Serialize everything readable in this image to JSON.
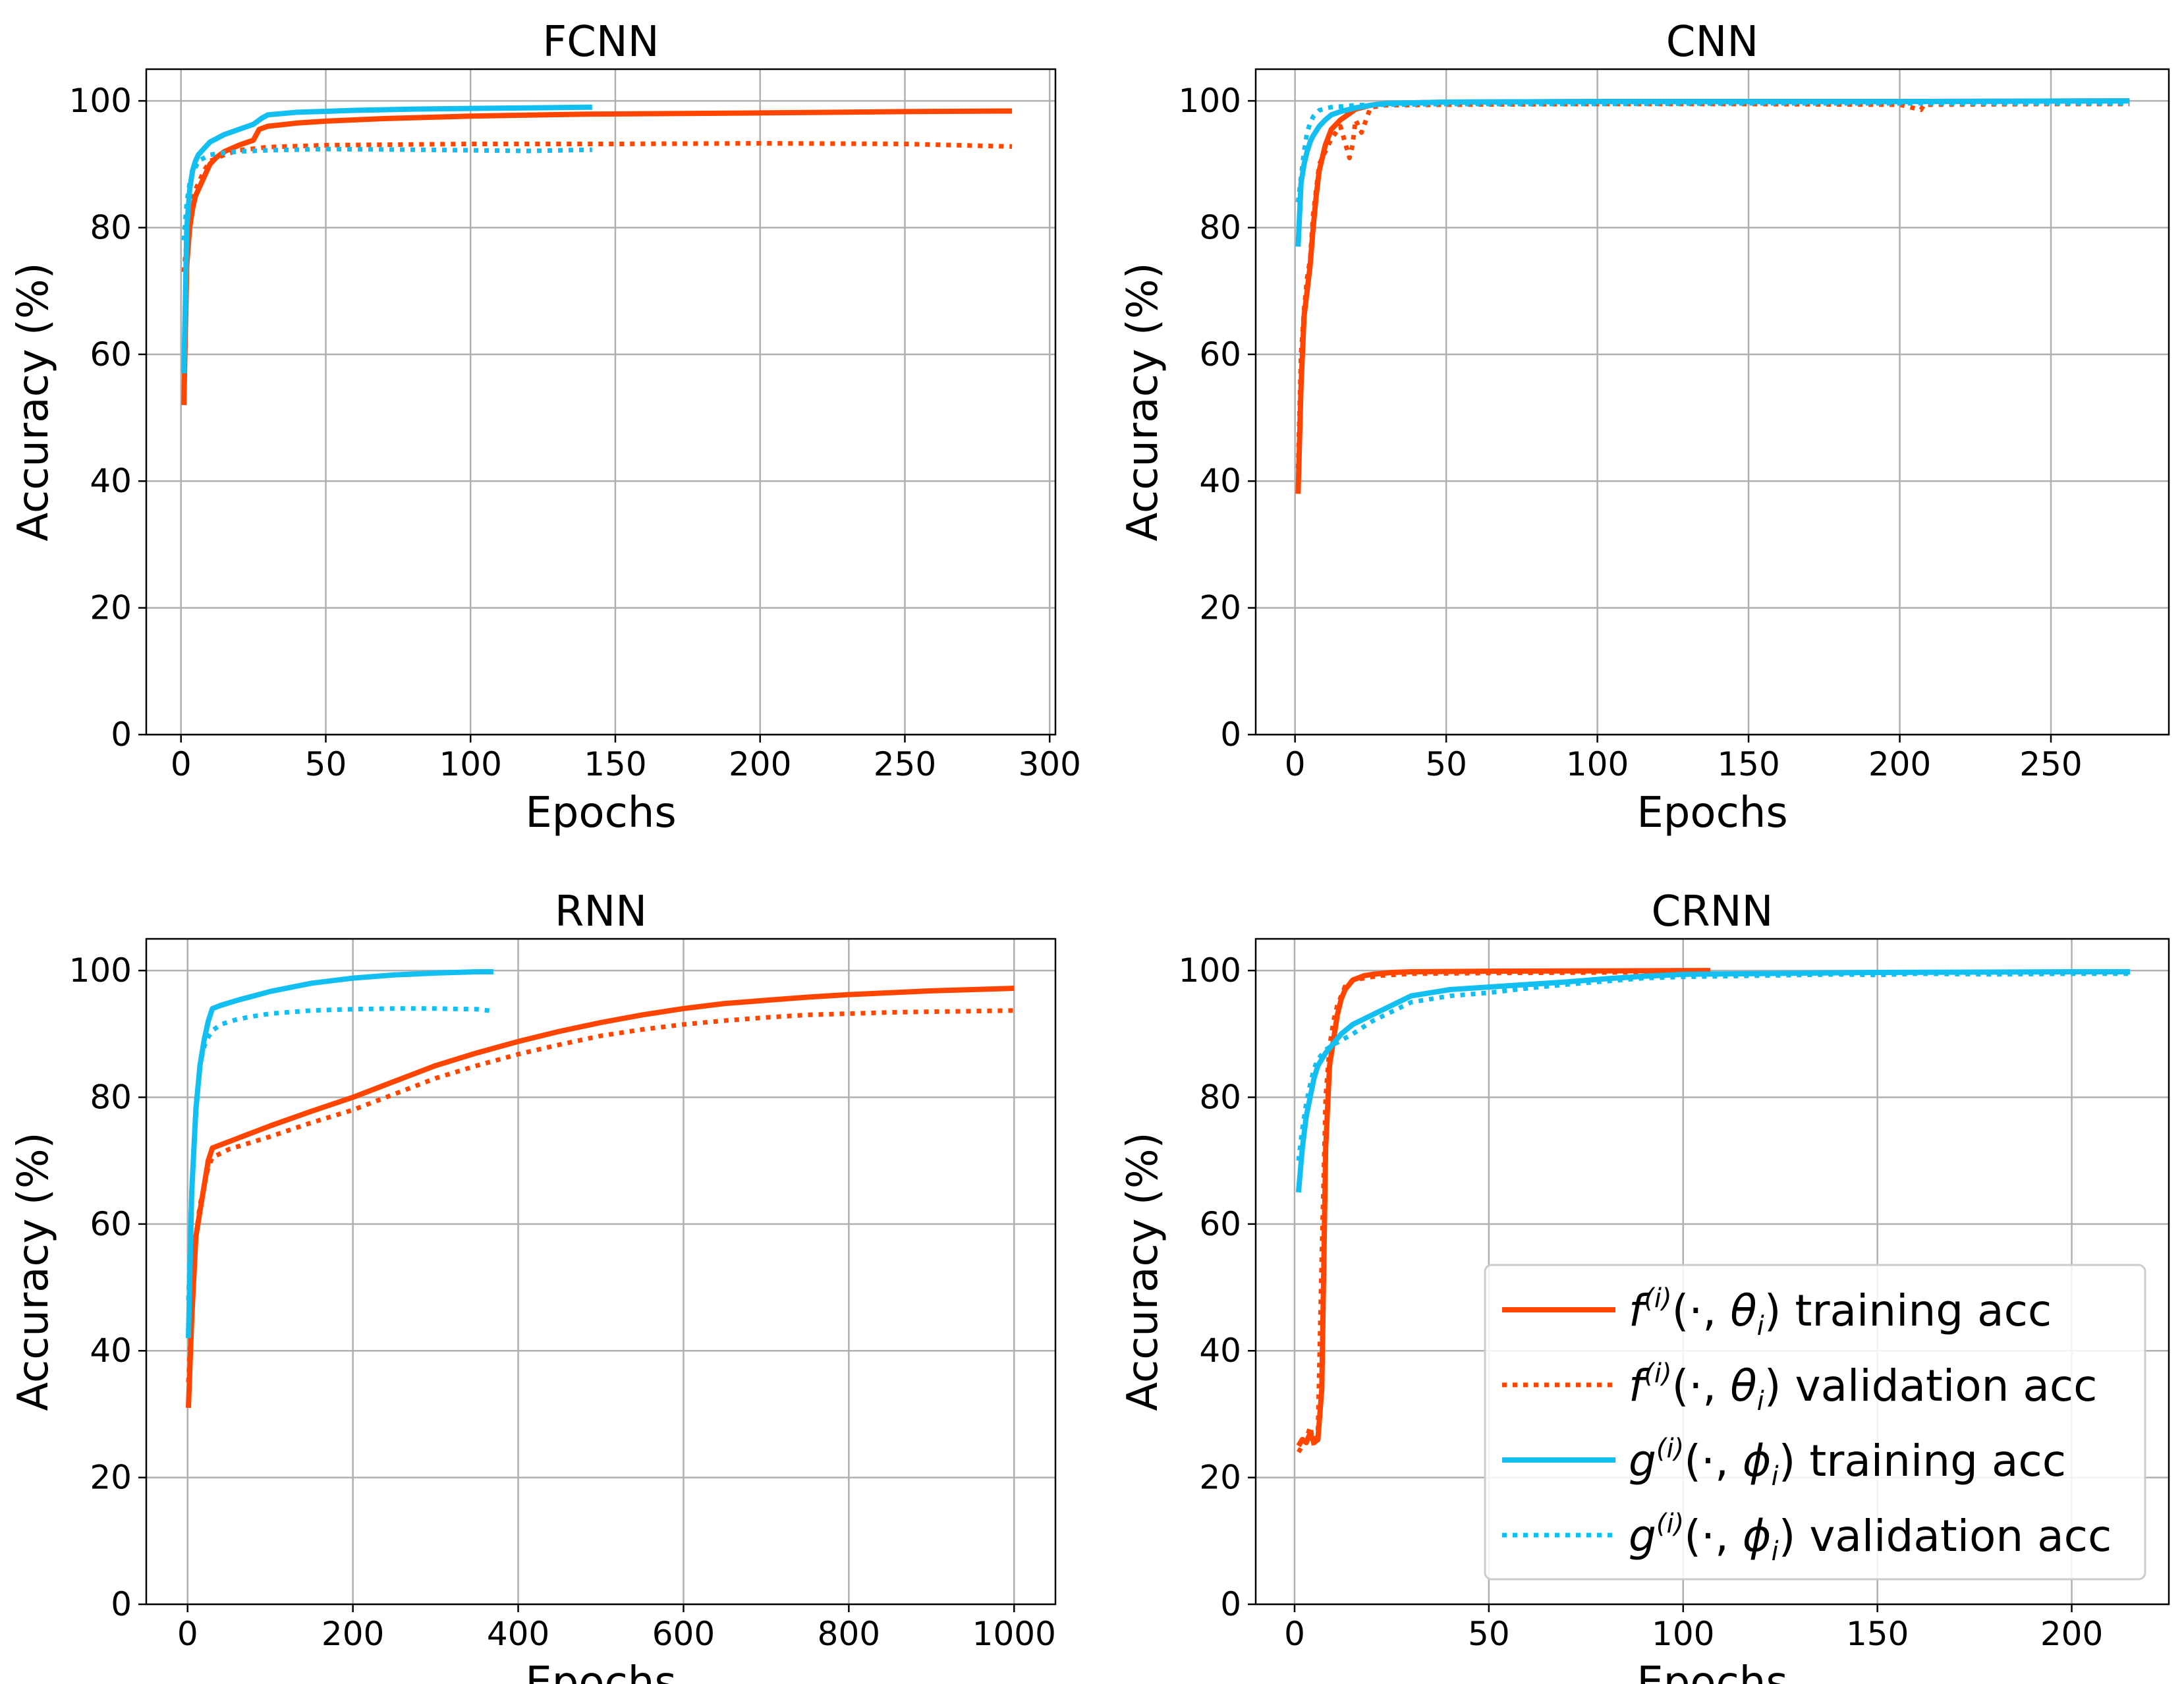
{
  "colors": {
    "f_model": "#ff4500",
    "g_model": "#12bff0",
    "grid": "#b0b0b0"
  },
  "legend": {
    "entries": [
      {
        "series": "f_train",
        "label": "f(i)(·, θi) training acc",
        "func": "f",
        "sup": "(i)",
        "args": "(·, ",
        "param": "θ",
        "sub": "i",
        "tail": ") training acc"
      },
      {
        "series": "f_val",
        "label": "f(i)(·, θi) validation acc",
        "func": "f",
        "sup": "(i)",
        "args": "(·, ",
        "param": "θ",
        "sub": "i",
        "tail": ") validation acc"
      },
      {
        "series": "g_train",
        "label": "g(i)(·, ϕi) training acc",
        "func": "g",
        "sup": "(i)",
        "args": "(·, ",
        "param": "ϕ",
        "sub": "i",
        "tail": ") training acc"
      },
      {
        "series": "g_val",
        "label": "g(i)(·, ϕi) validation acc",
        "func": "g",
        "sup": "(i)",
        "args": "(·, ",
        "param": "ϕ",
        "sub": "i",
        "tail": ") validation acc"
      }
    ],
    "placement": "lower-right of CRNN panel"
  },
  "chart_data": [
    {
      "type": "line",
      "title": "FCNN",
      "xlabel": "Epochs",
      "ylabel": "Accuracy (%)",
      "xlim": [
        -12,
        302
      ],
      "ylim": [
        0,
        105
      ],
      "xticks": [
        0,
        50,
        100,
        150,
        200,
        250,
        300
      ],
      "yticks": [
        0,
        20,
        40,
        60,
        80,
        100
      ],
      "grid": true,
      "series": [
        {
          "name": "f_train",
          "style": "solid",
          "x": [
            1,
            2,
            3,
            4,
            5,
            6,
            8,
            10,
            12,
            15,
            20,
            25,
            27,
            30,
            40,
            50,
            70,
            100,
            140,
            200,
            250,
            287
          ],
          "y": [
            52,
            74,
            80,
            83,
            85,
            86,
            88,
            90,
            91,
            92,
            93,
            93.8,
            95.5,
            96,
            96.5,
            96.8,
            97.2,
            97.6,
            97.9,
            98.1,
            98.3,
            98.4
          ]
        },
        {
          "name": "f_val",
          "style": "dotted",
          "x": [
            1,
            2,
            3,
            4,
            5,
            6,
            8,
            10,
            15,
            20,
            30,
            50,
            100,
            150,
            200,
            250,
            287
          ],
          "y": [
            73,
            78,
            82,
            84,
            86,
            87,
            89,
            90.5,
            91.5,
            92.2,
            92.7,
            93,
            93.2,
            93.2,
            93.3,
            93.2,
            92.8
          ]
        },
        {
          "name": "g_train",
          "style": "solid",
          "x": [
            1,
            2,
            3,
            4,
            5,
            6,
            8,
            10,
            15,
            20,
            25,
            28,
            30,
            40,
            60,
            80,
            100,
            120,
            142
          ],
          "y": [
            57,
            80,
            86,
            89,
            90.5,
            91.5,
            92.5,
            93.5,
            94.7,
            95.5,
            96.3,
            97.3,
            97.8,
            98.2,
            98.5,
            98.7,
            98.8,
            98.9,
            99
          ]
        },
        {
          "name": "g_val",
          "style": "dotted",
          "x": [
            1,
            2,
            3,
            4,
            5,
            6,
            8,
            10,
            15,
            20,
            30,
            50,
            80,
            100,
            120,
            142
          ],
          "y": [
            78,
            84,
            87,
            88.5,
            89.5,
            90.5,
            91,
            91.5,
            91.8,
            92,
            92.2,
            92.4,
            92.3,
            92.2,
            92.1,
            92.3
          ]
        }
      ]
    },
    {
      "type": "line",
      "title": "CNN",
      "xlabel": "Epochs",
      "ylabel": "Accuracy (%)",
      "xlim": [
        -13,
        289
      ],
      "ylim": [
        0,
        105
      ],
      "xticks": [
        0,
        50,
        100,
        150,
        200,
        250
      ],
      "yticks": [
        0,
        20,
        40,
        60,
        80,
        100
      ],
      "grid": true,
      "series": [
        {
          "name": "f_train",
          "style": "solid",
          "x": [
            1,
            2,
            3,
            4,
            5,
            6,
            7,
            8,
            10,
            12,
            15,
            18,
            20,
            25,
            30,
            50,
            100,
            150,
            200,
            276
          ],
          "y": [
            38,
            55,
            66,
            70,
            74,
            80,
            85,
            89,
            93,
            95.5,
            97,
            98,
            98.7,
            99.3,
            99.6,
            99.8,
            99.9,
            99.9,
            99.9,
            100
          ]
        },
        {
          "name": "f_val",
          "style": "dotted",
          "x": [
            1,
            2,
            3,
            4,
            5,
            6,
            7,
            8,
            10,
            12,
            15,
            18,
            19,
            20,
            22,
            25,
            30,
            50,
            100,
            150,
            200,
            207,
            208,
            250,
            276
          ],
          "y": [
            42,
            60,
            67,
            72,
            75,
            82,
            86,
            90,
            92,
            94,
            96,
            91,
            93,
            97,
            95,
            99,
            99.3,
            99.4,
            99.5,
            99.5,
            99.4,
            98.6,
            99.4,
            99.5,
            99.5
          ]
        },
        {
          "name": "g_train",
          "style": "solid",
          "x": [
            1,
            2,
            3,
            4,
            5,
            6,
            8,
            10,
            12,
            15,
            20,
            25,
            30,
            50,
            100,
            150,
            200,
            276
          ],
          "y": [
            77,
            87,
            90,
            92,
            93.5,
            94.5,
            96,
            97,
            97.8,
            98.3,
            98.9,
            99.3,
            99.6,
            99.8,
            99.9,
            99.9,
            99.9,
            100
          ]
        },
        {
          "name": "g_val",
          "style": "dotted",
          "x": [
            1,
            2,
            3,
            4,
            5,
            6,
            8,
            10,
            12,
            15,
            20,
            30,
            50,
            100,
            150,
            200,
            276
          ],
          "y": [
            84,
            88,
            92,
            95,
            96.5,
            97.5,
            98.5,
            98.8,
            99,
            99.1,
            99.3,
            99.4,
            99.5,
            99.5,
            99.6,
            99.6,
            99.6
          ]
        }
      ]
    },
    {
      "type": "line",
      "title": "RNN",
      "xlabel": "Epochs",
      "ylabel": "Accuracy (%)",
      "xlim": [
        -50,
        1050
      ],
      "ylim": [
        0,
        105
      ],
      "xticks": [
        0,
        200,
        400,
        600,
        800,
        1000
      ],
      "yticks": [
        0,
        20,
        40,
        60,
        80,
        100
      ],
      "grid": true,
      "series": [
        {
          "name": "f_train",
          "style": "solid",
          "x": [
            1,
            5,
            10,
            15,
            20,
            25,
            30,
            50,
            100,
            150,
            200,
            250,
            300,
            350,
            400,
            450,
            500,
            550,
            600,
            650,
            700,
            750,
            800,
            850,
            900,
            950,
            1000
          ],
          "y": [
            31,
            45,
            58,
            62,
            66,
            70,
            72,
            73,
            75.5,
            77.8,
            80,
            82.5,
            85,
            87,
            88.8,
            90.4,
            91.8,
            93,
            94,
            94.8,
            95.3,
            95.8,
            96.2,
            96.5,
            96.8,
            97,
            97.2
          ]
        },
        {
          "name": "f_val",
          "style": "dotted",
          "x": [
            1,
            5,
            10,
            15,
            20,
            25,
            30,
            50,
            100,
            150,
            200,
            250,
            300,
            350,
            400,
            450,
            500,
            550,
            600,
            650,
            700,
            750,
            800,
            850,
            900,
            950,
            1000
          ],
          "y": [
            35,
            47,
            58,
            63,
            66,
            69,
            70.5,
            71.8,
            73.8,
            76,
            78,
            80.5,
            83,
            85,
            86.8,
            88.3,
            89.7,
            90.7,
            91.5,
            92.1,
            92.6,
            93,
            93.2,
            93.4,
            93.5,
            93.6,
            93.7
          ]
        },
        {
          "name": "g_train",
          "style": "solid",
          "x": [
            1,
            5,
            10,
            15,
            20,
            25,
            30,
            40,
            60,
            80,
            100,
            150,
            200,
            250,
            300,
            350,
            370
          ],
          "y": [
            42,
            65,
            78,
            85,
            89,
            92,
            94,
            94.5,
            95.3,
            96,
            96.7,
            98,
            98.8,
            99.3,
            99.6,
            99.8,
            99.8
          ]
        },
        {
          "name": "g_val",
          "style": "dotted",
          "x": [
            1,
            5,
            10,
            15,
            20,
            25,
            30,
            40,
            60,
            80,
            100,
            150,
            200,
            250,
            300,
            350,
            370
          ],
          "y": [
            48,
            66,
            79,
            85,
            88,
            89.5,
            90.5,
            91.5,
            92.3,
            92.8,
            93.2,
            93.7,
            93.9,
            94,
            94,
            93.9,
            93.6
          ]
        }
      ]
    },
    {
      "type": "line",
      "title": "CRNN",
      "xlabel": "Epochs",
      "ylabel": "Accuracy (%)",
      "xlim": [
        -10,
        225
      ],
      "ylim": [
        0,
        105
      ],
      "xticks": [
        0,
        50,
        100,
        150,
        200
      ],
      "yticks": [
        0,
        20,
        40,
        60,
        80,
        100
      ],
      "grid": true,
      "series": [
        {
          "name": "f_train",
          "style": "solid",
          "x": [
            1,
            2,
            3,
            4,
            5,
            6,
            7,
            8,
            9,
            10,
            11,
            12,
            13,
            15,
            18,
            20,
            25,
            30,
            50,
            80,
            107
          ],
          "y": [
            25,
            26,
            25.5,
            27,
            25.5,
            26,
            34,
            72,
            85,
            89,
            93,
            95.5,
            97,
            98.5,
            99.2,
            99.4,
            99.7,
            99.8,
            99.9,
            99.95,
            100
          ]
        },
        {
          "name": "f_val",
          "style": "dotted",
          "x": [
            1,
            2,
            3,
            4,
            5,
            6,
            7,
            8,
            9,
            10,
            11,
            12,
            13,
            15,
            18,
            20,
            22,
            25,
            30,
            50,
            80,
            107
          ],
          "y": [
            24,
            25,
            26,
            28,
            25,
            27,
            55,
            80,
            88,
            92,
            94.5,
            96,
            97.5,
            98.5,
            98.8,
            99,
            99.2,
            99.3,
            99.5,
            99.6,
            99.7,
            99.8
          ]
        },
        {
          "name": "g_train",
          "style": "solid",
          "x": [
            1,
            2,
            3,
            4,
            5,
            6,
            8,
            10,
            12,
            15,
            20,
            25,
            30,
            40,
            50,
            60,
            70,
            80,
            90,
            100,
            150,
            200,
            215
          ],
          "y": [
            65,
            72,
            77,
            80,
            83,
            85,
            87,
            88.5,
            90,
            91.5,
            93,
            94.5,
            96,
            97,
            97.4,
            97.8,
            98.2,
            98.7,
            99.1,
            99.4,
            99.7,
            99.8,
            99.8
          ]
        },
        {
          "name": "g_val",
          "style": "dotted",
          "x": [
            1,
            2,
            3,
            4,
            5,
            6,
            8,
            10,
            12,
            15,
            20,
            25,
            30,
            40,
            50,
            60,
            70,
            80,
            90,
            100,
            120,
            140,
            150,
            160,
            180,
            200,
            215
          ],
          "y": [
            70,
            75,
            79,
            82,
            84.5,
            86,
            87.5,
            88.3,
            89,
            90,
            92,
            93.5,
            95,
            96,
            96.5,
            97.2,
            97.8,
            98.3,
            98.8,
            99,
            99.2,
            99.4,
            99.3,
            99.5,
            99.4,
            99.5,
            99.5
          ]
        }
      ]
    }
  ]
}
